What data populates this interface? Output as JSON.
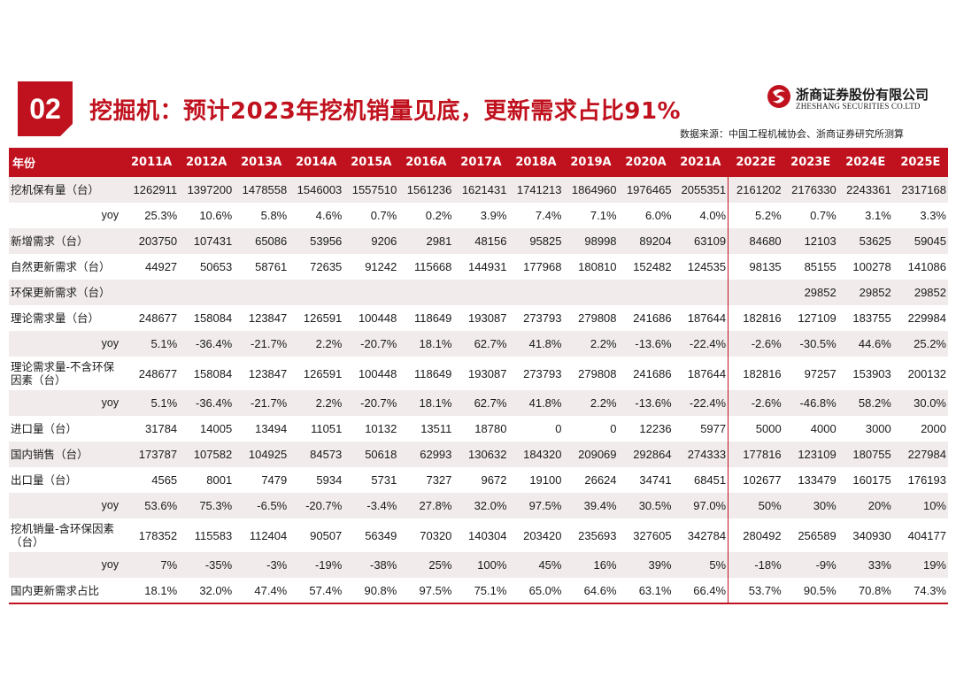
{
  "header": {
    "badge": "02",
    "title": "挖掘机：预计2023年挖机销量见底，更新需求占比91%",
    "logo_cn": "浙商证券股份有限公司",
    "logo_en": "ZHESHANG SECURITIES CO.LTD",
    "source": "数据来源：中国工程机械协会、浙商证券研究所测算"
  },
  "table": {
    "columns": [
      "年份",
      "2011A",
      "2012A",
      "2013A",
      "2014A",
      "2015A",
      "2016A",
      "2017A",
      "2018A",
      "2019A",
      "2020A",
      "2021A",
      "2022E",
      "2023E",
      "2024E",
      "2025E"
    ],
    "rows": [
      {
        "label": "挖机保有量（台）",
        "yoy": false,
        "cells": [
          "1262911",
          "1397200",
          "1478558",
          "1546003",
          "1557510",
          "1561236",
          "1621431",
          "1741213",
          "1864960",
          "1976465",
          "2055351",
          "2161202",
          "2176330",
          "2243361",
          "2317168"
        ]
      },
      {
        "label": "yoy",
        "yoy": true,
        "cells": [
          "25.3%",
          "10.6%",
          "5.8%",
          "4.6%",
          "0.7%",
          "0.2%",
          "3.9%",
          "7.4%",
          "7.1%",
          "6.0%",
          "4.0%",
          "5.2%",
          "0.7%",
          "3.1%",
          "3.3%"
        ]
      },
      {
        "label": "新增需求（台）",
        "yoy": false,
        "cells": [
          "203750",
          "107431",
          "65086",
          "53956",
          "9206",
          "2981",
          "48156",
          "95825",
          "98998",
          "89204",
          "63109",
          "84680",
          "12103",
          "53625",
          "59045"
        ]
      },
      {
        "label": "自然更新需求（台）",
        "yoy": false,
        "cells": [
          "44927",
          "50653",
          "58761",
          "72635",
          "91242",
          "115668",
          "144931",
          "177968",
          "180810",
          "152482",
          "124535",
          "98135",
          "85155",
          "100278",
          "141086"
        ]
      },
      {
        "label": "环保更新需求（台）",
        "yoy": false,
        "cells": [
          "",
          "",
          "",
          "",
          "",
          "",
          "",
          "",
          "",
          "",
          "",
          "",
          "29852",
          "29852",
          "29852"
        ]
      },
      {
        "label": "理论需求量（台）",
        "yoy": false,
        "cells": [
          "248677",
          "158084",
          "123847",
          "126591",
          "100448",
          "118649",
          "193087",
          "273793",
          "279808",
          "241686",
          "187644",
          "182816",
          "127109",
          "183755",
          "229984"
        ]
      },
      {
        "label": "yoy",
        "yoy": true,
        "cells": [
          "5.1%",
          "-36.4%",
          "-21.7%",
          "2.2%",
          "-20.7%",
          "18.1%",
          "62.7%",
          "41.8%",
          "2.2%",
          "-13.6%",
          "-22.4%",
          "-2.6%",
          "-30.5%",
          "44.6%",
          "25.2%"
        ]
      },
      {
        "label": "理论需求量-不含环保因素（台）",
        "yoy": false,
        "tall": true,
        "cells": [
          "248677",
          "158084",
          "123847",
          "126591",
          "100448",
          "118649",
          "193087",
          "273793",
          "279808",
          "241686",
          "187644",
          "182816",
          "97257",
          "153903",
          "200132"
        ]
      },
      {
        "label": "yoy",
        "yoy": true,
        "cells": [
          "5.1%",
          "-36.4%",
          "-21.7%",
          "2.2%",
          "-20.7%",
          "18.1%",
          "62.7%",
          "41.8%",
          "2.2%",
          "-13.6%",
          "-22.4%",
          "-2.6%",
          "-46.8%",
          "58.2%",
          "30.0%"
        ]
      },
      {
        "label": "进口量（台）",
        "yoy": false,
        "cells": [
          "31784",
          "14005",
          "13494",
          "11051",
          "10132",
          "13511",
          "18780",
          "0",
          "0",
          "12236",
          "5977",
          "5000",
          "4000",
          "3000",
          "2000"
        ]
      },
      {
        "label": "国内销售（台）",
        "yoy": false,
        "cells": [
          "173787",
          "107582",
          "104925",
          "84573",
          "50618",
          "62993",
          "130632",
          "184320",
          "209069",
          "292864",
          "274333",
          "177816",
          "123109",
          "180755",
          "227984"
        ]
      },
      {
        "label": "出口量（台）",
        "yoy": false,
        "cells": [
          "4565",
          "8001",
          "7479",
          "5934",
          "5731",
          "7327",
          "9672",
          "19100",
          "26624",
          "34741",
          "68451",
          "102677",
          "133479",
          "160175",
          "176193"
        ]
      },
      {
        "label": "yoy",
        "yoy": true,
        "cells": [
          "53.6%",
          "75.3%",
          "-6.5%",
          "-20.7%",
          "-3.4%",
          "27.8%",
          "32.0%",
          "97.5%",
          "39.4%",
          "30.5%",
          "97.0%",
          "50%",
          "30%",
          "20%",
          "10%"
        ]
      },
      {
        "label": "挖机销量-含环保因素（台）",
        "yoy": false,
        "tall": true,
        "cells": [
          "178352",
          "115583",
          "112404",
          "90507",
          "56349",
          "70320",
          "140304",
          "203420",
          "235693",
          "327605",
          "342784",
          "280492",
          "256589",
          "340930",
          "404177"
        ]
      },
      {
        "label": "yoy",
        "yoy": true,
        "cells": [
          "7%",
          "-35%",
          "-3%",
          "-19%",
          "-38%",
          "25%",
          "100%",
          "45%",
          "16%",
          "39%",
          "5%",
          "-18%",
          "-9%",
          "33%",
          "19%"
        ]
      },
      {
        "label": "国内更新需求占比",
        "yoy": false,
        "cells": [
          "18.1%",
          "32.0%",
          "47.4%",
          "57.4%",
          "90.8%",
          "97.5%",
          "75.1%",
          "65.0%",
          "64.6%",
          "63.1%",
          "66.4%",
          "53.7%",
          "90.5%",
          "70.8%",
          "74.3%"
        ]
      }
    ]
  },
  "colors": {
    "accent": "#c0121e",
    "row_shade": "#f1ebeb"
  },
  "icons": {
    "logo": "zheshang-logo-icon"
  }
}
